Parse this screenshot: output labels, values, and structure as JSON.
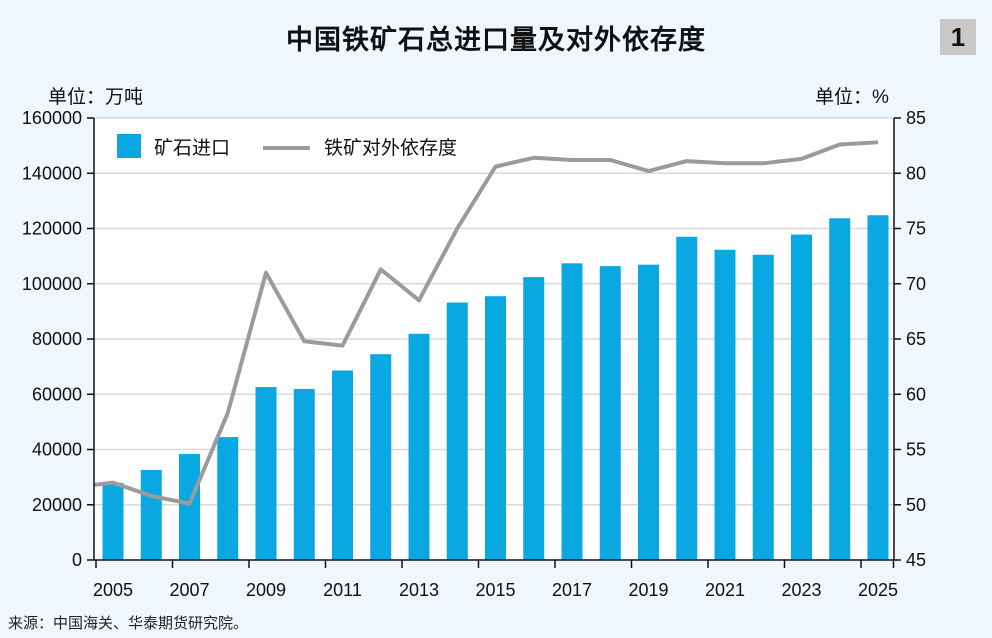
{
  "badge": "1",
  "chart_data": {
    "type": "bar",
    "title": "中国铁矿石总进口量及对外依存度",
    "left_unit_label": "单位：万吨",
    "right_unit_label": "单位：%",
    "categories": [
      "2005",
      "2006",
      "2007",
      "2008",
      "2009",
      "2010",
      "2011",
      "2012",
      "2013",
      "2014",
      "2015",
      "2016",
      "2017",
      "2018",
      "2019",
      "2020",
      "2021",
      "2022",
      "2023",
      "2024",
      "2025"
    ],
    "x_tick_labels": [
      "2005",
      "2007",
      "2009",
      "2011",
      "2013",
      "2015",
      "2017",
      "2019",
      "2021",
      "2023",
      "2025"
    ],
    "series": [
      {
        "name": "矿石进口",
        "type": "bar",
        "axis": "left",
        "color": "#0aa8e3",
        "values": [
          27900,
          32600,
          38400,
          44500,
          62600,
          61900,
          68600,
          74500,
          81900,
          93200,
          95500,
          102400,
          107400,
          106400,
          106900,
          117000,
          112300,
          110500,
          117800,
          123700,
          124800
        ]
      },
      {
        "name": "铁矿对外依存度",
        "type": "line",
        "axis": "right",
        "color": "#9b9b9b",
        "start_value": 51.8,
        "values": [
          52.0,
          50.8,
          50.1,
          58.3,
          71.0,
          64.8,
          64.4,
          71.3,
          68.5,
          75.0,
          80.6,
          81.4,
          81.2,
          81.2,
          80.2,
          81.1,
          80.9,
          80.9,
          81.3,
          82.6,
          82.8
        ]
      }
    ],
    "y_left": {
      "min": 0,
      "max": 160000,
      "ticks": [
        "0",
        "20000",
        "40000",
        "60000",
        "80000",
        "100000",
        "120000",
        "140000",
        "160000"
      ]
    },
    "y_right": {
      "min": 45,
      "max": 85,
      "ticks": [
        "45",
        "50",
        "55",
        "60",
        "65",
        "70",
        "75",
        "80",
        "85"
      ]
    },
    "grid": true,
    "legend_position": "top-left",
    "source": "来源：中国海关、华泰期货研究院。"
  }
}
